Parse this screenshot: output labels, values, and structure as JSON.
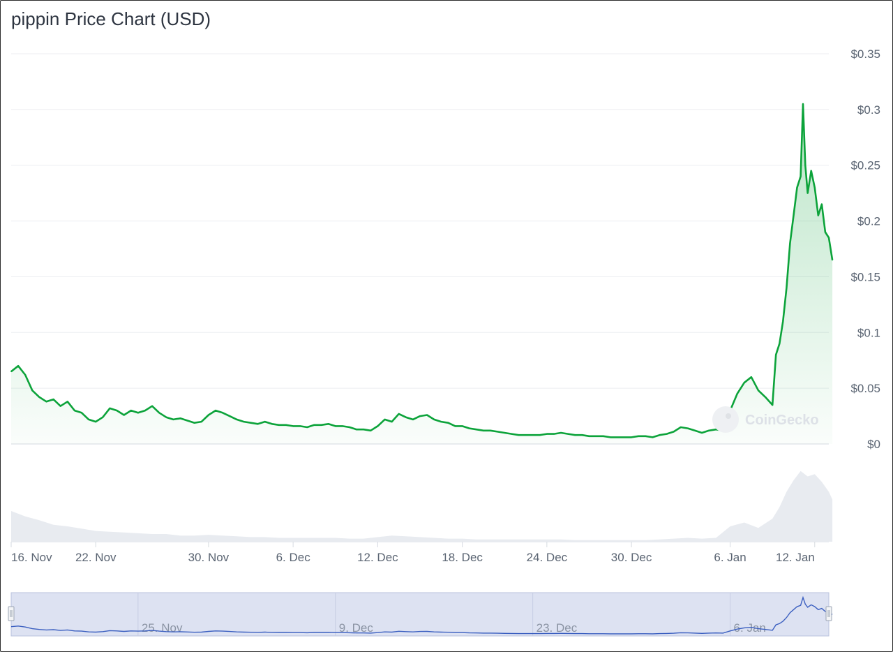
{
  "chart_data": {
    "type": "line",
    "title": "pippin Price Chart (USD)",
    "watermark": "CoinGecko",
    "currency": "USD",
    "y_ticks": [
      {
        "value": 0,
        "label": "$0"
      },
      {
        "value": 0.05,
        "label": "$0.05"
      },
      {
        "value": 0.1,
        "label": "$0.1"
      },
      {
        "value": 0.15,
        "label": "$0.15"
      },
      {
        "value": 0.2,
        "label": "$0.2"
      },
      {
        "value": 0.25,
        "label": "$0.25"
      },
      {
        "value": 0.3,
        "label": "$0.3"
      },
      {
        "value": 0.35,
        "label": "$0.35"
      }
    ],
    "ylim": [
      0,
      0.35
    ],
    "xlim": [
      "2024-11-16",
      "2025-01-13"
    ],
    "x_ticks": [
      {
        "date": "2024-11-16",
        "label": "16. Nov"
      },
      {
        "date": "2024-11-22",
        "label": "22. Nov"
      },
      {
        "date": "2024-11-30",
        "label": "30. Nov"
      },
      {
        "date": "2024-12-06",
        "label": "6. Dec"
      },
      {
        "date": "2024-12-12",
        "label": "12. Dec"
      },
      {
        "date": "2024-12-18",
        "label": "18. Dec"
      },
      {
        "date": "2024-12-24",
        "label": "24. Dec"
      },
      {
        "date": "2024-12-30",
        "label": "30. Dec"
      },
      {
        "date": "2025-01-06",
        "label": "6. Jan"
      },
      {
        "date": "2025-01-12",
        "label": "12. Jan"
      }
    ],
    "navigator_ticks": [
      {
        "date": "2024-11-25",
        "label": "25. Nov"
      },
      {
        "date": "2024-12-09",
        "label": "9. Dec"
      },
      {
        "date": "2024-12-23",
        "label": "23. Dec"
      },
      {
        "date": "2025-01-06",
        "label": "6. Jan"
      }
    ],
    "series": [
      {
        "color": "#0ca33a",
        "points": [
          [
            "2024-11-16",
            0.065
          ],
          [
            "2024-11-16T12",
            0.07
          ],
          [
            "2024-11-17",
            0.062
          ],
          [
            "2024-11-17T12",
            0.048
          ],
          [
            "2024-11-18",
            0.042
          ],
          [
            "2024-11-18T12",
            0.038
          ],
          [
            "2024-11-19",
            0.04
          ],
          [
            "2024-11-19T12",
            0.034
          ],
          [
            "2024-11-20",
            0.038
          ],
          [
            "2024-11-20T12",
            0.03
          ],
          [
            "2024-11-21",
            0.028
          ],
          [
            "2024-11-21T12",
            0.022
          ],
          [
            "2024-11-22",
            0.02
          ],
          [
            "2024-11-22T12",
            0.024
          ],
          [
            "2024-11-23",
            0.032
          ],
          [
            "2024-11-23T12",
            0.03
          ],
          [
            "2024-11-24",
            0.026
          ],
          [
            "2024-11-24T12",
            0.03
          ],
          [
            "2024-11-25",
            0.028
          ],
          [
            "2024-11-25T12",
            0.03
          ],
          [
            "2024-11-26",
            0.034
          ],
          [
            "2024-11-26T12",
            0.028
          ],
          [
            "2024-11-27",
            0.024
          ],
          [
            "2024-11-27T12",
            0.022
          ],
          [
            "2024-11-28",
            0.023
          ],
          [
            "2024-11-28T12",
            0.021
          ],
          [
            "2024-11-29",
            0.019
          ],
          [
            "2024-11-29T12",
            0.02
          ],
          [
            "2024-11-30",
            0.026
          ],
          [
            "2024-11-30T12",
            0.03
          ],
          [
            "2024-12-01",
            0.028
          ],
          [
            "2024-12-01T12",
            0.025
          ],
          [
            "2024-12-02",
            0.022
          ],
          [
            "2024-12-02T12",
            0.02
          ],
          [
            "2024-12-03",
            0.019
          ],
          [
            "2024-12-03T12",
            0.018
          ],
          [
            "2024-12-04",
            0.02
          ],
          [
            "2024-12-04T12",
            0.018
          ],
          [
            "2024-12-05",
            0.017
          ],
          [
            "2024-12-05T12",
            0.017
          ],
          [
            "2024-12-06",
            0.016
          ],
          [
            "2024-12-06T12",
            0.016
          ],
          [
            "2024-12-07",
            0.015
          ],
          [
            "2024-12-07T12",
            0.017
          ],
          [
            "2024-12-08",
            0.017
          ],
          [
            "2024-12-08T12",
            0.018
          ],
          [
            "2024-12-09",
            0.016
          ],
          [
            "2024-12-09T12",
            0.016
          ],
          [
            "2024-12-10",
            0.015
          ],
          [
            "2024-12-10T12",
            0.013
          ],
          [
            "2024-12-11",
            0.013
          ],
          [
            "2024-12-11T12",
            0.012
          ],
          [
            "2024-12-12",
            0.016
          ],
          [
            "2024-12-12T12",
            0.022
          ],
          [
            "2024-12-13",
            0.02
          ],
          [
            "2024-12-13T12",
            0.027
          ],
          [
            "2024-12-14",
            0.024
          ],
          [
            "2024-12-14T12",
            0.022
          ],
          [
            "2024-12-15",
            0.025
          ],
          [
            "2024-12-15T12",
            0.026
          ],
          [
            "2024-12-16",
            0.022
          ],
          [
            "2024-12-16T12",
            0.02
          ],
          [
            "2024-12-17",
            0.019
          ],
          [
            "2024-12-17T12",
            0.016
          ],
          [
            "2024-12-18",
            0.016
          ],
          [
            "2024-12-18T12",
            0.014
          ],
          [
            "2024-12-19",
            0.013
          ],
          [
            "2024-12-19T12",
            0.012
          ],
          [
            "2024-12-20",
            0.012
          ],
          [
            "2024-12-20T12",
            0.011
          ],
          [
            "2024-12-21",
            0.01
          ],
          [
            "2024-12-21T12",
            0.009
          ],
          [
            "2024-12-22",
            0.008
          ],
          [
            "2024-12-22T12",
            0.008
          ],
          [
            "2024-12-23",
            0.008
          ],
          [
            "2024-12-23T12",
            0.008
          ],
          [
            "2024-12-24",
            0.009
          ],
          [
            "2024-12-24T12",
            0.009
          ],
          [
            "2024-12-25",
            0.01
          ],
          [
            "2024-12-25T12",
            0.009
          ],
          [
            "2024-12-26",
            0.008
          ],
          [
            "2024-12-26T12",
            0.008
          ],
          [
            "2024-12-27",
            0.007
          ],
          [
            "2024-12-27T12",
            0.007
          ],
          [
            "2024-12-28",
            0.007
          ],
          [
            "2024-12-28T12",
            0.006
          ],
          [
            "2024-12-29",
            0.006
          ],
          [
            "2024-12-29T12",
            0.006
          ],
          [
            "2024-12-30",
            0.006
          ],
          [
            "2024-12-30T12",
            0.007
          ],
          [
            "2024-12-31",
            0.007
          ],
          [
            "2024-12-31T12",
            0.006
          ],
          [
            "2025-01-01",
            0.008
          ],
          [
            "2025-01-01T12",
            0.009
          ],
          [
            "2025-01-02",
            0.011
          ],
          [
            "2025-01-02T12",
            0.015
          ],
          [
            "2025-01-03",
            0.014
          ],
          [
            "2025-01-03T12",
            0.012
          ],
          [
            "2025-01-04",
            0.01
          ],
          [
            "2025-01-04T12",
            0.012
          ],
          [
            "2025-01-05",
            0.013
          ],
          [
            "2025-01-05T12",
            0.012
          ],
          [
            "2025-01-06",
            0.03
          ],
          [
            "2025-01-06T12",
            0.045
          ],
          [
            "2025-01-07",
            0.055
          ],
          [
            "2025-01-07T12",
            0.06
          ],
          [
            "2025-01-08",
            0.048
          ],
          [
            "2025-01-08T12",
            0.042
          ],
          [
            "2025-01-09",
            0.035
          ],
          [
            "2025-01-09T06",
            0.08
          ],
          [
            "2025-01-09T12",
            0.09
          ],
          [
            "2025-01-09T18",
            0.11
          ],
          [
            "2025-01-10",
            0.14
          ],
          [
            "2025-01-10T06",
            0.18
          ],
          [
            "2025-01-10T12",
            0.205
          ],
          [
            "2025-01-10T18",
            0.23
          ],
          [
            "2025-01-11",
            0.24
          ],
          [
            "2025-01-11T04",
            0.305
          ],
          [
            "2025-01-11T08",
            0.25
          ],
          [
            "2025-01-11T12",
            0.225
          ],
          [
            "2025-01-11T18",
            0.245
          ],
          [
            "2025-01-12",
            0.23
          ],
          [
            "2025-01-12T06",
            0.205
          ],
          [
            "2025-01-12T12",
            0.215
          ],
          [
            "2025-01-12T18",
            0.19
          ],
          [
            "2025-01-13",
            0.185
          ],
          [
            "2025-01-13T06",
            0.165
          ]
        ]
      }
    ],
    "volume": [
      [
        "2024-11-16",
        0.4
      ],
      [
        "2024-11-17",
        0.33
      ],
      [
        "2024-11-18",
        0.28
      ],
      [
        "2024-11-19",
        0.22
      ],
      [
        "2024-11-20",
        0.2
      ],
      [
        "2024-11-21",
        0.17
      ],
      [
        "2024-11-22",
        0.14
      ],
      [
        "2024-11-23",
        0.13
      ],
      [
        "2024-11-24",
        0.12
      ],
      [
        "2024-11-25",
        0.11
      ],
      [
        "2024-11-26",
        0.1
      ],
      [
        "2024-11-27",
        0.1
      ],
      [
        "2024-11-28",
        0.08
      ],
      [
        "2024-11-29",
        0.08
      ],
      [
        "2024-11-30",
        0.09
      ],
      [
        "2024-12-01",
        0.08
      ],
      [
        "2024-12-02",
        0.07
      ],
      [
        "2024-12-03",
        0.06
      ],
      [
        "2024-12-04",
        0.06
      ],
      [
        "2024-12-05",
        0.05
      ],
      [
        "2024-12-06",
        0.05
      ],
      [
        "2024-12-07",
        0.05
      ],
      [
        "2024-12-08",
        0.05
      ],
      [
        "2024-12-09",
        0.05
      ],
      [
        "2024-12-10",
        0.04
      ],
      [
        "2024-12-11",
        0.04
      ],
      [
        "2024-12-12",
        0.06
      ],
      [
        "2024-12-13",
        0.08
      ],
      [
        "2024-12-14",
        0.07
      ],
      [
        "2024-12-15",
        0.06
      ],
      [
        "2024-12-16",
        0.05
      ],
      [
        "2024-12-17",
        0.04
      ],
      [
        "2024-12-18",
        0.04
      ],
      [
        "2024-12-19",
        0.03
      ],
      [
        "2024-12-20",
        0.03
      ],
      [
        "2024-12-21",
        0.03
      ],
      [
        "2024-12-22",
        0.03
      ],
      [
        "2024-12-23",
        0.03
      ],
      [
        "2024-12-24",
        0.03
      ],
      [
        "2024-12-25",
        0.03
      ],
      [
        "2024-12-26",
        0.02
      ],
      [
        "2024-12-27",
        0.02
      ],
      [
        "2024-12-28",
        0.02
      ],
      [
        "2024-12-29",
        0.02
      ],
      [
        "2024-12-30",
        0.02
      ],
      [
        "2024-12-31",
        0.02
      ],
      [
        "2025-01-01",
        0.03
      ],
      [
        "2025-01-02",
        0.04
      ],
      [
        "2025-01-03",
        0.05
      ],
      [
        "2025-01-04",
        0.04
      ],
      [
        "2025-01-05",
        0.05
      ],
      [
        "2025-01-06",
        0.2
      ],
      [
        "2025-01-07",
        0.25
      ],
      [
        "2025-01-08",
        0.18
      ],
      [
        "2025-01-09",
        0.3
      ],
      [
        "2025-01-09T12",
        0.45
      ],
      [
        "2025-01-10",
        0.65
      ],
      [
        "2025-01-10T12",
        0.8
      ],
      [
        "2025-01-11",
        0.92
      ],
      [
        "2025-01-11T12",
        0.85
      ],
      [
        "2025-01-12",
        0.88
      ],
      [
        "2025-01-12T12",
        0.78
      ],
      [
        "2025-01-13",
        0.65
      ],
      [
        "2025-01-13T06",
        0.55
      ]
    ]
  }
}
